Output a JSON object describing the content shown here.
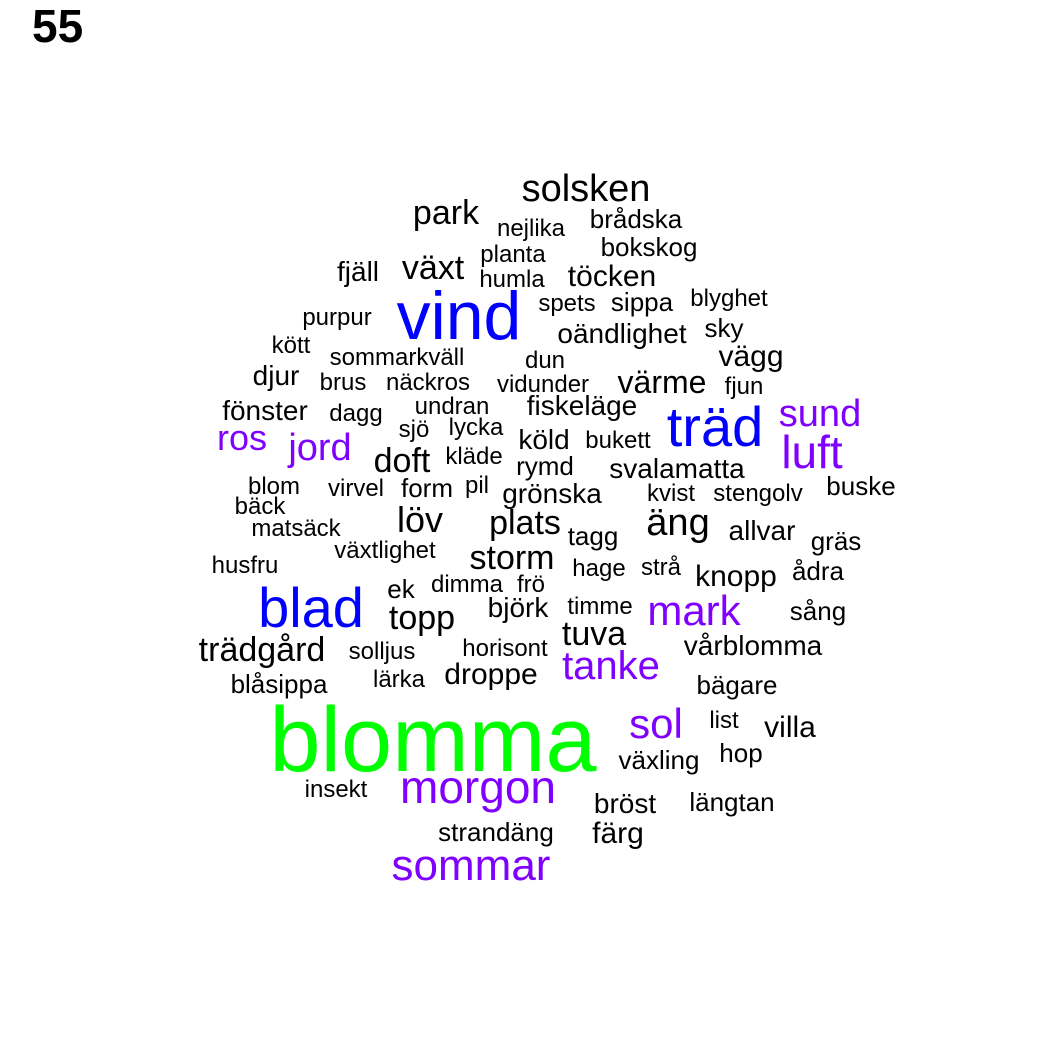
{
  "page_number": "55",
  "colors": {
    "black": "#000000",
    "blue": "#0000ff",
    "purple": "#8000ff",
    "green": "#00ff00"
  },
  "words": [
    {
      "text": "solsken",
      "color": "black"
    },
    {
      "text": "park",
      "color": "black"
    },
    {
      "text": "nejlika",
      "color": "black"
    },
    {
      "text": "brådska",
      "color": "black"
    },
    {
      "text": "planta",
      "color": "black"
    },
    {
      "text": "bokskog",
      "color": "black"
    },
    {
      "text": "växt",
      "color": "black"
    },
    {
      "text": "fjäll",
      "color": "black"
    },
    {
      "text": "humla",
      "color": "black"
    },
    {
      "text": "töcken",
      "color": "black"
    },
    {
      "text": "vind",
      "color": "blue"
    },
    {
      "text": "spets",
      "color": "black"
    },
    {
      "text": "sippa",
      "color": "black"
    },
    {
      "text": "blyghet",
      "color": "black"
    },
    {
      "text": "purpur",
      "color": "black"
    },
    {
      "text": "sky",
      "color": "black"
    },
    {
      "text": "oändlighet",
      "color": "black"
    },
    {
      "text": "kött",
      "color": "black"
    },
    {
      "text": "sommarkväll",
      "color": "black"
    },
    {
      "text": "dun",
      "color": "black"
    },
    {
      "text": "vägg",
      "color": "black"
    },
    {
      "text": "djur",
      "color": "black"
    },
    {
      "text": "brus",
      "color": "black"
    },
    {
      "text": "näckros",
      "color": "black"
    },
    {
      "text": "vidunder",
      "color": "black"
    },
    {
      "text": "värme",
      "color": "black"
    },
    {
      "text": "fjun",
      "color": "black"
    },
    {
      "text": "fönster",
      "color": "black"
    },
    {
      "text": "dagg",
      "color": "black"
    },
    {
      "text": "undran",
      "color": "black"
    },
    {
      "text": "fiskeläge",
      "color": "black"
    },
    {
      "text": "träd",
      "color": "blue"
    },
    {
      "text": "sund",
      "color": "purple"
    },
    {
      "text": "ros",
      "color": "purple"
    },
    {
      "text": "jord",
      "color": "purple"
    },
    {
      "text": "sjö",
      "color": "black"
    },
    {
      "text": "lycka",
      "color": "black"
    },
    {
      "text": "köld",
      "color": "black"
    },
    {
      "text": "bukett",
      "color": "black"
    },
    {
      "text": "luft",
      "color": "purple"
    },
    {
      "text": "doft",
      "color": "black"
    },
    {
      "text": "kläde",
      "color": "black"
    },
    {
      "text": "rymd",
      "color": "black"
    },
    {
      "text": "svalamatta",
      "color": "black"
    },
    {
      "text": "blom",
      "color": "black"
    },
    {
      "text": "virvel",
      "color": "black"
    },
    {
      "text": "form",
      "color": "black"
    },
    {
      "text": "pil",
      "color": "black"
    },
    {
      "text": "grönska",
      "color": "black"
    },
    {
      "text": "kvist",
      "color": "black"
    },
    {
      "text": "stengolv",
      "color": "black"
    },
    {
      "text": "buske",
      "color": "black"
    },
    {
      "text": "bäck",
      "color": "black"
    },
    {
      "text": "löv",
      "color": "black"
    },
    {
      "text": "plats",
      "color": "black"
    },
    {
      "text": "äng",
      "color": "black"
    },
    {
      "text": "matsäck",
      "color": "black"
    },
    {
      "text": "tagg",
      "color": "black"
    },
    {
      "text": "allvar",
      "color": "black"
    },
    {
      "text": "gräs",
      "color": "black"
    },
    {
      "text": "växtlighet",
      "color": "black"
    },
    {
      "text": "storm",
      "color": "black"
    },
    {
      "text": "husfru",
      "color": "black"
    },
    {
      "text": "hage",
      "color": "black"
    },
    {
      "text": "strå",
      "color": "black"
    },
    {
      "text": "knopp",
      "color": "black"
    },
    {
      "text": "ådra",
      "color": "black"
    },
    {
      "text": "ek",
      "color": "black"
    },
    {
      "text": "dimma",
      "color": "black"
    },
    {
      "text": "frö",
      "color": "black"
    },
    {
      "text": "blad",
      "color": "blue"
    },
    {
      "text": "björk",
      "color": "black"
    },
    {
      "text": "timme",
      "color": "black"
    },
    {
      "text": "mark",
      "color": "purple"
    },
    {
      "text": "sång",
      "color": "black"
    },
    {
      "text": "topp",
      "color": "black"
    },
    {
      "text": "tuva",
      "color": "black"
    },
    {
      "text": "trädgård",
      "color": "black"
    },
    {
      "text": "horisont",
      "color": "black"
    },
    {
      "text": "vårblomma",
      "color": "black"
    },
    {
      "text": "solljus",
      "color": "black"
    },
    {
      "text": "tanke",
      "color": "purple"
    },
    {
      "text": "droppe",
      "color": "black"
    },
    {
      "text": "blåsippa",
      "color": "black"
    },
    {
      "text": "lärka",
      "color": "black"
    },
    {
      "text": "bägare",
      "color": "black"
    },
    {
      "text": "blomma",
      "color": "green"
    },
    {
      "text": "sol",
      "color": "purple"
    },
    {
      "text": "list",
      "color": "black"
    },
    {
      "text": "villa",
      "color": "black"
    },
    {
      "text": "hop",
      "color": "black"
    },
    {
      "text": "växling",
      "color": "black"
    },
    {
      "text": "morgon",
      "color": "purple"
    },
    {
      "text": "insekt",
      "color": "black"
    },
    {
      "text": "bröst",
      "color": "black"
    },
    {
      "text": "längtan",
      "color": "black"
    },
    {
      "text": "strandäng",
      "color": "black"
    },
    {
      "text": "färg",
      "color": "black"
    },
    {
      "text": "sommar",
      "color": "purple"
    }
  ]
}
